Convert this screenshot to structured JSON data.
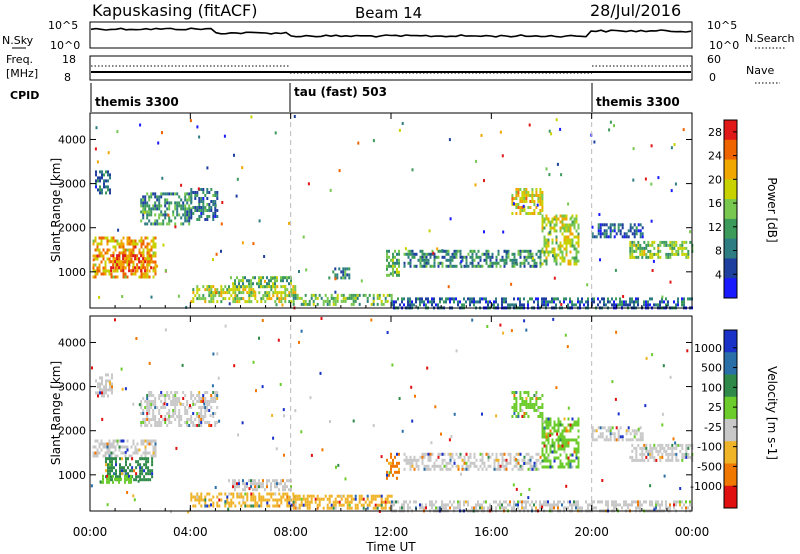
{
  "header": {
    "station": "Kapuskasing (fitACF)",
    "beam": "Beam 14",
    "date": "28/Jul/2016"
  },
  "noise_panel": {
    "left_label": "N.Sky",
    "right_label": "N.Search",
    "left_ticks": [
      "10^5",
      "10^0"
    ],
    "right_ticks": [
      "10^5",
      "10^0"
    ]
  },
  "freq_panel": {
    "left_label_1": "Freq.",
    "left_label_2": "[MHz]",
    "right_label": "Nave",
    "left_ticks": [
      "18",
      "8"
    ],
    "right_ticks": [
      "60",
      "0"
    ]
  },
  "cpid_panel": {
    "label": "CPID",
    "segments": [
      {
        "start_hour": 0,
        "end_hour": 8,
        "name": "themis 3300"
      },
      {
        "start_hour": 8,
        "end_hour": 20,
        "name": "tau (fast) 503"
      },
      {
        "start_hour": 20,
        "end_hour": 24,
        "name": "themis 3300"
      }
    ]
  },
  "chart_data": [
    {
      "type": "heatmap",
      "title": "",
      "xlabel": "Time UT",
      "ylabel": "Slant Range [km]",
      "xlim": [
        0,
        24
      ],
      "ylim": [
        180,
        4600
      ],
      "x_ticks": [
        "00:00",
        "04:00",
        "08:00",
        "12:00",
        "16:00",
        "20:00",
        "00:00"
      ],
      "y_ticks": [
        "1000",
        "2000",
        "3000",
        "4000"
      ],
      "y_tick_values": [
        1000,
        2000,
        3000,
        4000
      ],
      "colorbar": {
        "label": "Power [dB]",
        "range": [
          0,
          30
        ],
        "ticks": [
          "4",
          "8",
          "12",
          "16",
          "20",
          "24",
          "28"
        ],
        "tick_values": [
          4,
          8,
          12,
          16,
          20,
          24,
          28
        ],
        "colors": [
          "#1a1aff",
          "#1f3f9f",
          "#2e7d82",
          "#3c9a5a",
          "#78c850",
          "#c8d200",
          "#f0a800",
          "#f06400",
          "#e01818"
        ]
      },
      "regions": [
        {
          "t0": 0.1,
          "t1": 2.6,
          "r0": 900,
          "r1": 1800,
          "level": 0.72
        },
        {
          "t0": 0.8,
          "t1": 2.4,
          "r0": 1000,
          "r1": 1400,
          "level": 0.86
        },
        {
          "t0": 0.2,
          "t1": 0.8,
          "r0": 2800,
          "r1": 3300,
          "level": 0.25
        },
        {
          "t0": 2.0,
          "t1": 4.0,
          "r0": 2100,
          "r1": 2800,
          "level": 0.35
        },
        {
          "t0": 4.0,
          "t1": 5.1,
          "r0": 2200,
          "r1": 2900,
          "level": 0.28
        },
        {
          "t0": 4.0,
          "t1": 8.2,
          "r0": 300,
          "r1": 700,
          "level": 0.55
        },
        {
          "t0": 5.5,
          "t1": 8.0,
          "r0": 650,
          "r1": 900,
          "level": 0.4
        },
        {
          "t0": 8.0,
          "t1": 12.0,
          "r0": 250,
          "r1": 500,
          "level": 0.45
        },
        {
          "t0": 9.5,
          "t1": 10.3,
          "r0": 850,
          "r1": 1100,
          "level": 0.3
        },
        {
          "t0": 11.8,
          "t1": 12.3,
          "r0": 900,
          "r1": 1500,
          "level": 0.45
        },
        {
          "t0": 12.5,
          "t1": 18.0,
          "r0": 1100,
          "r1": 1500,
          "level": 0.32
        },
        {
          "t0": 16.8,
          "t1": 18.0,
          "r0": 2300,
          "r1": 2900,
          "level": 0.62
        },
        {
          "t0": 18.0,
          "t1": 19.5,
          "r0": 1200,
          "r1": 2300,
          "level": 0.58
        },
        {
          "t0": 12.0,
          "t1": 24.0,
          "r0": 200,
          "r1": 420,
          "level": 0.22
        },
        {
          "t0": 20.0,
          "t1": 22.0,
          "r0": 1800,
          "r1": 2100,
          "level": 0.2
        },
        {
          "t0": 21.5,
          "t1": 24.0,
          "r0": 1300,
          "r1": 1700,
          "level": 0.5
        }
      ]
    },
    {
      "type": "heatmap",
      "title": "",
      "xlabel": "Time UT",
      "ylabel": "Slant Range [km]",
      "xlim": [
        0,
        24
      ],
      "ylim": [
        180,
        4600
      ],
      "x_ticks": [
        "00:00",
        "04:00",
        "08:00",
        "12:00",
        "16:00",
        "20:00",
        "00:00"
      ],
      "y_ticks": [
        "1000",
        "2000",
        "3000",
        "4000"
      ],
      "y_tick_values": [
        1000,
        2000,
        3000,
        4000
      ],
      "colorbar": {
        "label": "Velocity [m s-1]",
        "ticks": [
          "1000",
          "500",
          "100",
          "25",
          "-25",
          "-100",
          "-500",
          "-1000"
        ],
        "colors": [
          "#1a32c8",
          "#2a6fa8",
          "#2f8a4a",
          "#6ccc2c",
          "#c8c8c8",
          "#f0b428",
          "#f07800",
          "#e01010"
        ]
      },
      "regions": [
        {
          "t0": 0.1,
          "t1": 2.6,
          "r0": 1400,
          "r1": 1800,
          "color": "#c8c8c8"
        },
        {
          "t0": 0.6,
          "t1": 2.5,
          "r0": 900,
          "r1": 1400,
          "color": "#2f8a4a"
        },
        {
          "t0": 0.4,
          "t1": 1.6,
          "r0": 800,
          "r1": 1000,
          "color": "#6ccc2c"
        },
        {
          "t0": 0.2,
          "t1": 0.9,
          "r0": 2800,
          "r1": 3300,
          "color": "#c8c8c8"
        },
        {
          "t0": 2.0,
          "t1": 5.1,
          "r0": 2100,
          "r1": 2900,
          "color": "#c8c8c8"
        },
        {
          "t0": 4.0,
          "t1": 8.2,
          "r0": 300,
          "r1": 600,
          "color": "#f0b428"
        },
        {
          "t0": 5.5,
          "t1": 8.0,
          "r0": 650,
          "r1": 900,
          "color": "#c8c8c8"
        },
        {
          "t0": 8.0,
          "t1": 12.0,
          "r0": 250,
          "r1": 550,
          "color": "#f0b428"
        },
        {
          "t0": 11.8,
          "t1": 12.3,
          "r0": 900,
          "r1": 1500,
          "color": "#f07800"
        },
        {
          "t0": 12.5,
          "t1": 18.0,
          "r0": 1100,
          "r1": 1500,
          "color": "#c8c8c8"
        },
        {
          "t0": 16.8,
          "t1": 18.0,
          "r0": 2300,
          "r1": 2900,
          "color": "#6ccc2c"
        },
        {
          "t0": 18.0,
          "t1": 19.5,
          "r0": 1200,
          "r1": 2300,
          "color": "#6ccc2c"
        },
        {
          "t0": 12.0,
          "t1": 24.0,
          "r0": 200,
          "r1": 420,
          "color": "#c8c8c8"
        },
        {
          "t0": 20.0,
          "t1": 22.0,
          "r0": 1800,
          "r1": 2100,
          "color": "#c8c8c8"
        },
        {
          "t0": 21.5,
          "t1": 24.0,
          "r0": 1300,
          "r1": 1700,
          "color": "#c8c8c8"
        }
      ]
    }
  ]
}
